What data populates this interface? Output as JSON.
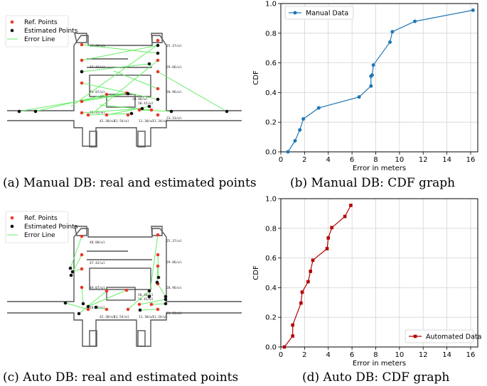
{
  "captions": {
    "a": "(a) Manual DB: real and estimated points",
    "b": "(b) Manual DB: CDF graph",
    "c": "(c) Auto DB: real and estimated points",
    "d": "(d) Auto DB: CDF graph"
  },
  "floorplan": {
    "legend": [
      "Ref. Points",
      "Estimated Points",
      "Error Line"
    ],
    "room_labels": [
      "48.08/wl",
      "47.42/wl",
      "49.07/wl",
      "18.48/wl",
      "18.41/wl",
      "18.42/wl",
      "42.30/wl",
      "41.54/wl",
      "11.30/wl",
      "11.34/wl",
      "25.37/wl",
      "29.86/wl",
      "28.96/wl",
      "23.33/wl"
    ]
  },
  "colors": {
    "manual": "#1f77b4",
    "auto": "#b30000",
    "ref": "#e8392b",
    "est": "#111111",
    "err": "#66ee66"
  },
  "chart_data": [
    {
      "type": "line",
      "title": "",
      "xlabel": "Error in meters",
      "ylabel": "CDF",
      "xlim": [
        0,
        16.6
      ],
      "ylim": [
        0,
        1.0
      ],
      "xticks": [
        0,
        2,
        4,
        6,
        8,
        10,
        12,
        14,
        16
      ],
      "yticks": [
        0.0,
        0.2,
        0.4,
        0.6,
        0.8,
        1.0
      ],
      "grid": true,
      "legend": "top-left",
      "series": [
        {
          "name": "Manual Data",
          "marker": "circle",
          "x": [
            0.6,
            1.2,
            1.6,
            1.9,
            3.2,
            6.6,
            7.6,
            7.6,
            7.7,
            7.8,
            9.2,
            9.4,
            11.3,
            16.2
          ],
          "y": [
            0.0,
            0.074,
            0.148,
            0.222,
            0.296,
            0.37,
            0.444,
            0.51,
            0.518,
            0.585,
            0.74,
            0.81,
            0.88,
            0.955
          ]
        }
      ]
    },
    {
      "type": "line",
      "title": "",
      "xlabel": "Error in meters",
      "ylabel": "CDF",
      "xlim": [
        0,
        16.6
      ],
      "ylim": [
        0,
        1.0
      ],
      "xticks": [
        0,
        2,
        4,
        6,
        8,
        10,
        12,
        14,
        16
      ],
      "yticks": [
        0.0,
        0.2,
        0.4,
        0.6,
        0.8,
        1.0
      ],
      "grid": true,
      "legend": "bottom-right",
      "series": [
        {
          "name": "Automated Data",
          "marker": "square",
          "x": [
            0.3,
            1.0,
            1.0,
            1.7,
            1.8,
            2.3,
            2.5,
            2.7,
            3.9,
            4.0,
            4.3,
            5.4,
            5.9
          ],
          "y": [
            0.0,
            0.074,
            0.148,
            0.296,
            0.37,
            0.44,
            0.51,
            0.585,
            0.663,
            0.735,
            0.805,
            0.88,
            0.955
          ]
        }
      ]
    }
  ]
}
